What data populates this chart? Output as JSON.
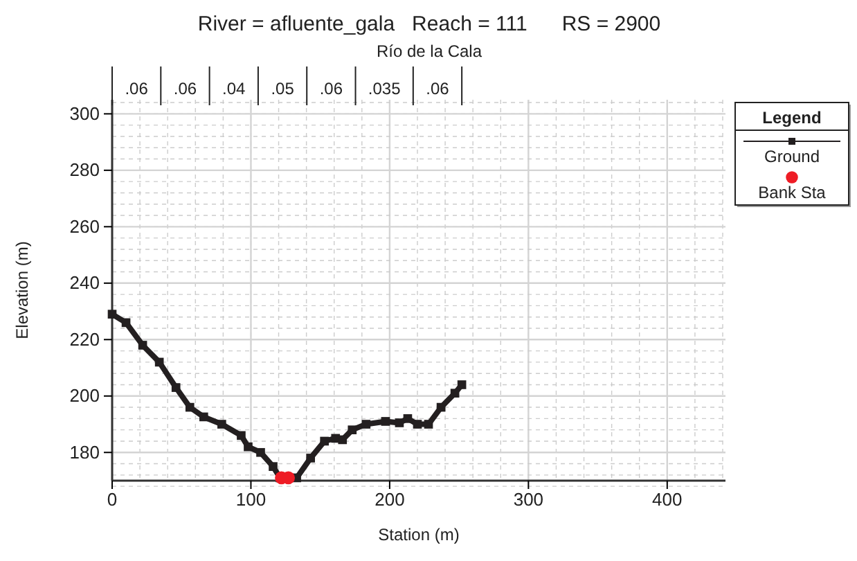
{
  "chart_data": {
    "type": "line",
    "title": "River = afluente_gala   Reach = 111      RS = 2900",
    "subtitle": "Río de la Cala",
    "xlabel": "Station (m)",
    "ylabel": "Elevation (m)",
    "legend_title": "Legend",
    "xlim": [
      0,
      442
    ],
    "ylim": [
      170,
      305
    ],
    "xticks": [
      0,
      100,
      200,
      300,
      400
    ],
    "yticks": [
      180,
      200,
      220,
      240,
      260,
      280,
      300
    ],
    "grid": true,
    "legend": "right",
    "series": [
      {
        "name": "Ground",
        "marker": "square",
        "color": "#231f20",
        "x": [
          0,
          10,
          22,
          34,
          46,
          56,
          66,
          79,
          93,
          98,
          107,
          116,
          121,
          125,
          133,
          143,
          153,
          161,
          166,
          173,
          183,
          197,
          207,
          213,
          220,
          228,
          237,
          247,
          252
        ],
        "values": [
          229,
          226,
          218,
          212,
          203,
          196,
          192.6,
          190,
          186,
          182,
          180,
          175,
          171,
          171,
          171,
          178,
          184,
          185,
          184.5,
          188,
          190,
          191,
          190.5,
          192,
          190,
          190,
          196,
          201,
          204
        ]
      },
      {
        "name": "Bank Sta",
        "type": "scatter",
        "marker": "circle",
        "color": "#ee1c25",
        "x": [
          122,
          127
        ],
        "values": [
          171,
          171
        ]
      }
    ],
    "annotations": [
      ".06",
      ".06",
      ".04",
      ".05",
      ".06",
      ".035",
      ".06"
    ]
  }
}
